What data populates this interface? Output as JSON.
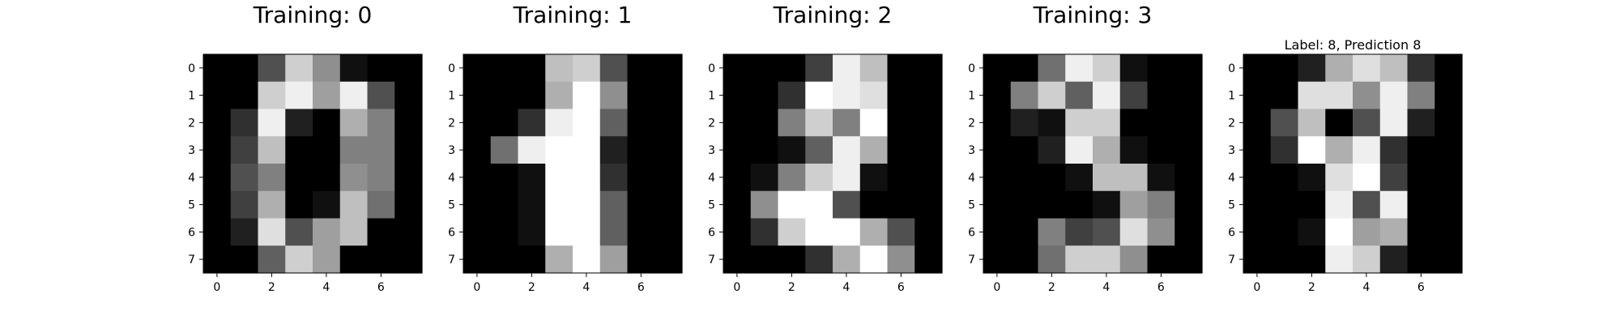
{
  "chart_data": [
    {
      "type": "heatmap",
      "title": "Training: 0",
      "colormap": "gray",
      "value_range": [
        0,
        16
      ],
      "x_ticks": [
        "0",
        "2",
        "4",
        "6"
      ],
      "y_ticks": [
        "0",
        "1",
        "2",
        "3",
        "4",
        "5",
        "6",
        "7"
      ],
      "pixels": [
        [
          0,
          0,
          5,
          13,
          9,
          1,
          0,
          0
        ],
        [
          0,
          0,
          13,
          15,
          10,
          15,
          5,
          0
        ],
        [
          0,
          3,
          15,
          2,
          0,
          11,
          8,
          0
        ],
        [
          0,
          4,
          12,
          0,
          0,
          8,
          8,
          0
        ],
        [
          0,
          5,
          8,
          0,
          0,
          9,
          8,
          0
        ],
        [
          0,
          4,
          11,
          0,
          1,
          12,
          7,
          0
        ],
        [
          0,
          2,
          14,
          5,
          10,
          12,
          0,
          0
        ],
        [
          0,
          0,
          6,
          13,
          10,
          0,
          0,
          0
        ]
      ]
    },
    {
      "type": "heatmap",
      "title": "Training: 1",
      "colormap": "gray",
      "value_range": [
        0,
        16
      ],
      "x_ticks": [
        "0",
        "2",
        "4",
        "6"
      ],
      "y_ticks": [
        "0",
        "1",
        "2",
        "3",
        "4",
        "5",
        "6",
        "7"
      ],
      "pixels": [
        [
          0,
          0,
          0,
          12,
          13,
          5,
          0,
          0
        ],
        [
          0,
          0,
          0,
          11,
          16,
          9,
          0,
          0
        ],
        [
          0,
          0,
          3,
          15,
          16,
          6,
          0,
          0
        ],
        [
          0,
          7,
          15,
          16,
          16,
          2,
          0,
          0
        ],
        [
          0,
          0,
          1,
          16,
          16,
          3,
          0,
          0
        ],
        [
          0,
          0,
          1,
          16,
          16,
          6,
          0,
          0
        ],
        [
          0,
          0,
          1,
          16,
          16,
          6,
          0,
          0
        ],
        [
          0,
          0,
          0,
          11,
          16,
          10,
          0,
          0
        ]
      ]
    },
    {
      "type": "heatmap",
      "title": "Training: 2",
      "colormap": "gray",
      "value_range": [
        0,
        16
      ],
      "x_ticks": [
        "0",
        "2",
        "4",
        "6"
      ],
      "y_ticks": [
        "0",
        "1",
        "2",
        "3",
        "4",
        "5",
        "6",
        "7"
      ],
      "pixels": [
        [
          0,
          0,
          0,
          4,
          15,
          12,
          0,
          0
        ],
        [
          0,
          0,
          3,
          16,
          15,
          14,
          0,
          0
        ],
        [
          0,
          0,
          8,
          13,
          8,
          16,
          0,
          0
        ],
        [
          0,
          0,
          1,
          6,
          15,
          11,
          0,
          0
        ],
        [
          0,
          1,
          8,
          13,
          15,
          1,
          0,
          0
        ],
        [
          0,
          9,
          16,
          16,
          5,
          0,
          0,
          0
        ],
        [
          0,
          3,
          13,
          16,
          16,
          11,
          5,
          0
        ],
        [
          0,
          0,
          0,
          3,
          11,
          16,
          9,
          0
        ]
      ]
    },
    {
      "type": "heatmap",
      "title": "Training: 3",
      "colormap": "gray",
      "value_range": [
        0,
        16
      ],
      "x_ticks": [
        "0",
        "2",
        "4",
        "6"
      ],
      "y_ticks": [
        "0",
        "1",
        "2",
        "3",
        "4",
        "5",
        "6",
        "7"
      ],
      "pixels": [
        [
          0,
          0,
          7,
          15,
          13,
          1,
          0,
          0
        ],
        [
          0,
          8,
          13,
          6,
          15,
          4,
          0,
          0
        ],
        [
          0,
          2,
          1,
          13,
          13,
          0,
          0,
          0
        ],
        [
          0,
          0,
          2,
          15,
          11,
          1,
          0,
          0
        ],
        [
          0,
          0,
          0,
          1,
          12,
          12,
          1,
          0
        ],
        [
          0,
          0,
          0,
          0,
          1,
          10,
          8,
          0
        ],
        [
          0,
          0,
          8,
          4,
          5,
          14,
          9,
          0
        ],
        [
          0,
          0,
          7,
          13,
          13,
          9,
          0,
          0
        ]
      ]
    },
    {
      "type": "heatmap",
      "title": "Label: 8, Prediction 8",
      "colormap": "gray",
      "value_range": [
        0,
        16
      ],
      "x_ticks": [
        "0",
        "2",
        "4",
        "6"
      ],
      "y_ticks": [
        "0",
        "1",
        "2",
        "3",
        "4",
        "5",
        "6",
        "7"
      ],
      "pixels": [
        [
          0,
          0,
          2,
          11,
          14,
          12,
          3,
          0
        ],
        [
          0,
          0,
          14,
          14,
          9,
          15,
          8,
          0
        ],
        [
          0,
          5,
          12,
          0,
          5,
          15,
          2,
          0
        ],
        [
          0,
          3,
          16,
          11,
          15,
          3,
          0,
          0
        ],
        [
          0,
          0,
          1,
          14,
          16,
          4,
          0,
          0
        ],
        [
          0,
          0,
          0,
          15,
          5,
          15,
          0,
          0
        ],
        [
          0,
          0,
          1,
          16,
          10,
          11,
          0,
          0
        ],
        [
          0,
          0,
          0,
          15,
          13,
          2,
          0,
          0
        ]
      ]
    }
  ]
}
